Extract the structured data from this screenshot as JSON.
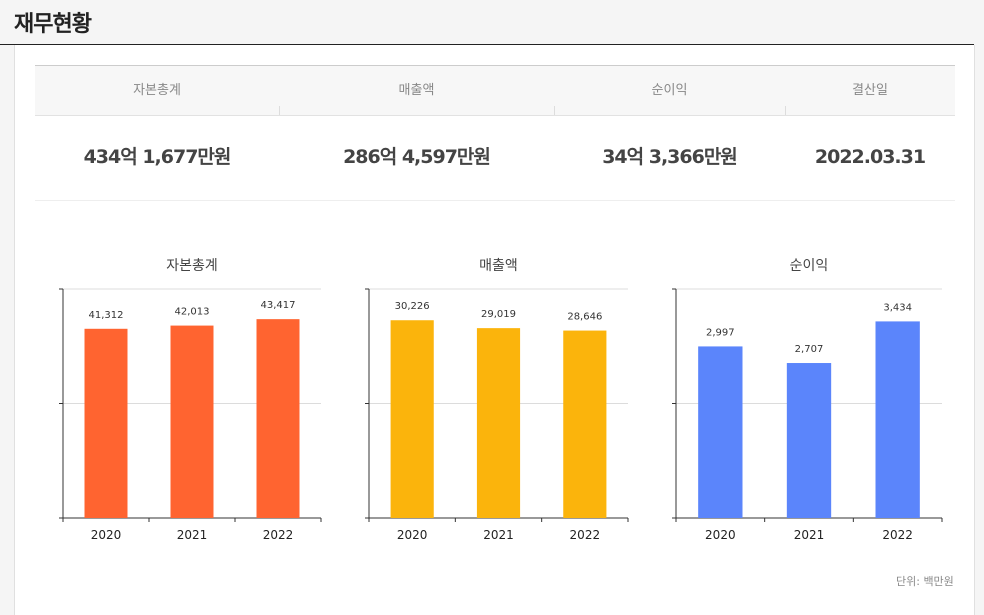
{
  "header": {
    "title": "재무현황"
  },
  "summary": {
    "headers": [
      "자본총계",
      "매출액",
      "순이익",
      "결산일"
    ],
    "values": [
      "434억 1,677만원",
      "286억 4,597만원",
      "34억 3,366만원",
      "2022.03.31"
    ]
  },
  "unit_label": "단위: 백만원",
  "chart_data": [
    {
      "type": "bar",
      "title": "자본총계",
      "categories": [
        "2020",
        "2021",
        "2022"
      ],
      "values": [
        41312,
        42013,
        43417
      ],
      "value_labels": [
        "41,312",
        "42,013",
        "43,417"
      ],
      "color": "#ff6430",
      "ylim": [
        0,
        50000
      ],
      "grid": true
    },
    {
      "type": "bar",
      "title": "매출액",
      "categories": [
        "2020",
        "2021",
        "2022"
      ],
      "values": [
        30226,
        29019,
        28646
      ],
      "value_labels": [
        "30,226",
        "29,019",
        "28,646"
      ],
      "color": "#fbb40c",
      "ylim": [
        0,
        35000
      ],
      "grid": true
    },
    {
      "type": "bar",
      "title": "순이익",
      "categories": [
        "2020",
        "2021",
        "2022"
      ],
      "values": [
        2997,
        2707,
        3434
      ],
      "value_labels": [
        "2,997",
        "2,707",
        "3,434"
      ],
      "color": "#5b85fb",
      "ylim": [
        0,
        4000
      ],
      "grid": true
    }
  ]
}
